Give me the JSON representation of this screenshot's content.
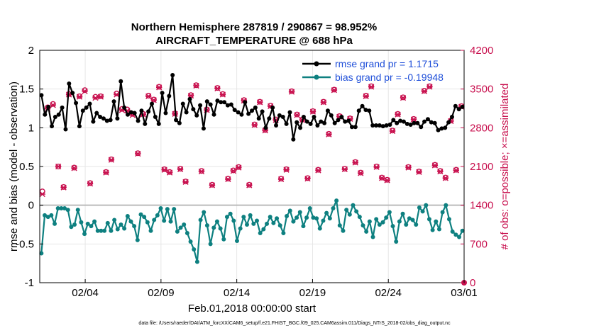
{
  "title_line1": "Northern Hemisphere 287819 / 290867 = 98.952%",
  "title_line2": "AIRCRAFT_TEMPERATURE @ 688 hPa",
  "xlabel": "Feb.01,2018 00:00:00 start",
  "ylabel_left": "rmse and bias (model - observation)",
  "ylabel_right": "# of obs: o=possible; ×=assimilated",
  "footnote": "data file: /Users/raeder/DAI/ATM_forcXX/CAM6_setup/f.e21.FHIST_BGC.f09_025.CAM6assim.011/Diags_NTrS_2018-02/obs_diag_output.nc",
  "colors": {
    "rmse": "#000000",
    "bias": "#0e8080",
    "obs": "#c8104e",
    "legend_text": "#1f4fd9",
    "zero_line": "#bbbbbb"
  },
  "chart_data": {
    "type": "line",
    "title": "Northern Hemisphere 287819 / 290867 = 98.952%",
    "subtitle": "AIRCRAFT_TEMPERATURE @ 688 hPa",
    "xlabel": "Feb.01,2018 00:00:00 start",
    "ylabel": "rmse and bias (model - observation)",
    "y2label": "# of obs: o=possible; ×=assimilated",
    "grid": true,
    "legend_position": "top-right",
    "x_range_days": [
      1,
      29
    ],
    "x_ticks": [
      4,
      9,
      14,
      19,
      24,
      29
    ],
    "x_tick_labels": [
      "02/04",
      "02/09",
      "02/14",
      "02/19",
      "02/24",
      "03/01"
    ],
    "ylim": [
      -1,
      2
    ],
    "y_ticks": [
      -1,
      -0.5,
      0,
      0.5,
      1,
      1.5,
      2
    ],
    "y_tick_labels": [
      "-1",
      "-0.5",
      "0",
      "0.5",
      "1",
      "1.5",
      "2"
    ],
    "y2lim": [
      0,
      4200
    ],
    "y2_ticks": [
      0,
      700,
      1400,
      2100,
      2800,
      3500,
      4200
    ],
    "y2_tick_labels": [
      "0",
      "700",
      "1400",
      "2100",
      "2800",
      "3500",
      "4200"
    ],
    "series": [
      {
        "name": "rmse grand pr = 1.1715",
        "kind": "line",
        "values": [
          1.42,
          1.17,
          1.27,
          1.02,
          1.14,
          1.17,
          1.26,
          0.98,
          1.57,
          1.45,
          1.32,
          1.02,
          1.22,
          1.26,
          1.31,
          1.08,
          1.19,
          1.14,
          1.12,
          1.09,
          1.1,
          1.34,
          1.12,
          1.6,
          1.26,
          1.17,
          1.2,
          1.19,
          1.09,
          1.22,
          1.05,
          1.21,
          1.31,
          1.14,
          1.05,
          1.45,
          1.19,
          1.41,
          1.68,
          1.1,
          1.06,
          1.31,
          1.2,
          1.37,
          1.24,
          1.16,
          1.29,
          0.99,
          1.34,
          1.3,
          1.17,
          1.35,
          1.33,
          1.33,
          1.29,
          1.3,
          1.23,
          1.2,
          1.17,
          1.33,
          1.18,
          1.22,
          1.26,
          1.12,
          1.21,
          1.0,
          1.12,
          1.26,
          1.03,
          1.16,
          1.14,
          1.05,
          1.2,
          0.85,
          1.07,
          1.0,
          1.14,
          1.08,
          1.05,
          1.14,
          1.03,
          1.08,
          1.06,
          1.22,
          1.16,
          1.06,
          1.1,
          1.14,
          1.08,
          1.09,
          1.01,
          1.01,
          1.22,
          1.28,
          1.23,
          1.22,
          1.03,
          1.03,
          1.03,
          1.02,
          1.03,
          1.04,
          1.1,
          1.06,
          1.09,
          1.08,
          1.05,
          1.04,
          1.06,
          1.06,
          1.01,
          1.08,
          1.11,
          1.07,
          1.06,
          0.97,
          0.99,
          1.0,
          1.07,
          1.14,
          1.28,
          1.24,
          1.27
        ]
      },
      {
        "name": "bias grand pr = -0.19948",
        "kind": "line",
        "values": [
          -0.62,
          -0.13,
          -0.15,
          -0.13,
          -0.24,
          -0.04,
          -0.04,
          -0.04,
          -0.06,
          -0.28,
          -0.25,
          -0.06,
          -0.22,
          -0.37,
          -0.24,
          -0.27,
          -0.21,
          -0.33,
          -0.33,
          -0.33,
          -0.23,
          -0.33,
          -0.19,
          -0.31,
          -0.25,
          -0.3,
          -0.14,
          -0.21,
          -0.27,
          -0.45,
          -0.12,
          -0.15,
          -0.22,
          -0.33,
          -0.19,
          -0.13,
          -0.04,
          -0.2,
          -0.05,
          -0.21,
          -0.05,
          -0.34,
          -0.29,
          -0.25,
          -0.36,
          -0.47,
          -0.57,
          -0.73,
          -0.19,
          -0.09,
          -0.26,
          -0.5,
          -0.29,
          -0.21,
          -0.3,
          -0.44,
          -0.15,
          -0.11,
          -0.2,
          -0.46,
          -0.3,
          -0.15,
          -0.25,
          -0.13,
          -0.24,
          -0.2,
          -0.36,
          -0.31,
          -0.24,
          -0.15,
          -0.23,
          -0.17,
          -0.26,
          -0.36,
          -0.14,
          -0.07,
          -0.21,
          -0.16,
          -0.09,
          -0.27,
          -0.16,
          -0.04,
          -0.16,
          -0.17,
          -0.3,
          -0.2,
          -0.1,
          -0.17,
          -0.04,
          0.06,
          -0.26,
          -0.33,
          -0.06,
          -0.12,
          0.0,
          -0.08,
          -0.15,
          -0.26,
          -0.34,
          -0.21,
          -0.41,
          -0.18,
          -0.25,
          -0.22,
          -0.16,
          -0.09,
          -0.27,
          -0.47,
          -0.21,
          -0.11,
          -0.25,
          -0.17,
          -0.19,
          -0.25,
          -0.03,
          -0.08,
          0.0,
          -0.18,
          -0.32,
          -0.21,
          -0.31,
          -0.09,
          0.0,
          -0.18,
          -0.34,
          -0.38,
          -0.41,
          -0.33
        ]
      },
      {
        "name": "obs possible",
        "kind": "marker-circle",
        "values": [
          1650,
          3170,
          3230,
          2100,
          1730,
          3410,
          2080,
          3370,
          3480,
          1800,
          3360,
          3370,
          2000,
          2230,
          3420,
          3140,
          3130,
          3050,
          2340,
          3050,
          3380,
          3310,
          3540,
          2050,
          2000,
          3060,
          2060,
          1830,
          3390,
          3570,
          2020,
          3130,
          1770,
          3520,
          3410,
          1880,
          2030,
          2090,
          3300,
          1770,
          2860,
          3270,
          2760,
          3200,
          2950,
          1880,
          2050,
          3460,
          3040,
          2950,
          1890,
          3100,
          2040,
          3270,
          2690,
          3490,
          3010,
          2060,
          2970,
          2180,
          1990,
          3380,
          3550,
          2100,
          1900,
          1860,
          2750,
          3050,
          3350,
          2090,
          2960,
          2010,
          3470,
          3550,
          2130,
          2020,
          1900,
          2930,
          2040,
          3190
        ]
      },
      {
        "name": "obs assimilated",
        "kind": "marker-x",
        "values": [
          1600,
          3140,
          3210,
          2100,
          1720,
          3400,
          2070,
          3360,
          3460,
          1790,
          3340,
          3360,
          1990,
          2220,
          3400,
          3120,
          3110,
          3030,
          2330,
          3040,
          3370,
          3300,
          3530,
          2040,
          1990,
          3050,
          2050,
          1820,
          3380,
          3560,
          2010,
          3120,
          1760,
          3510,
          3400,
          1870,
          2020,
          2080,
          3290,
          1760,
          2850,
          3260,
          2750,
          3190,
          2940,
          1870,
          2040,
          3450,
          3030,
          2940,
          1880,
          3090,
          2030,
          3260,
          2680,
          3480,
          3000,
          2050,
          2960,
          2170,
          1980,
          3370,
          3540,
          2090,
          1890,
          1850,
          2740,
          3040,
          3340,
          2080,
          2950,
          2000,
          3460,
          3540,
          2120,
          2010,
          1890,
          2920,
          2030,
          3180
        ]
      }
    ],
    "legend": [
      "rmse grand pr = 1.1715",
      "bias grand pr = -0.19948"
    ]
  }
}
